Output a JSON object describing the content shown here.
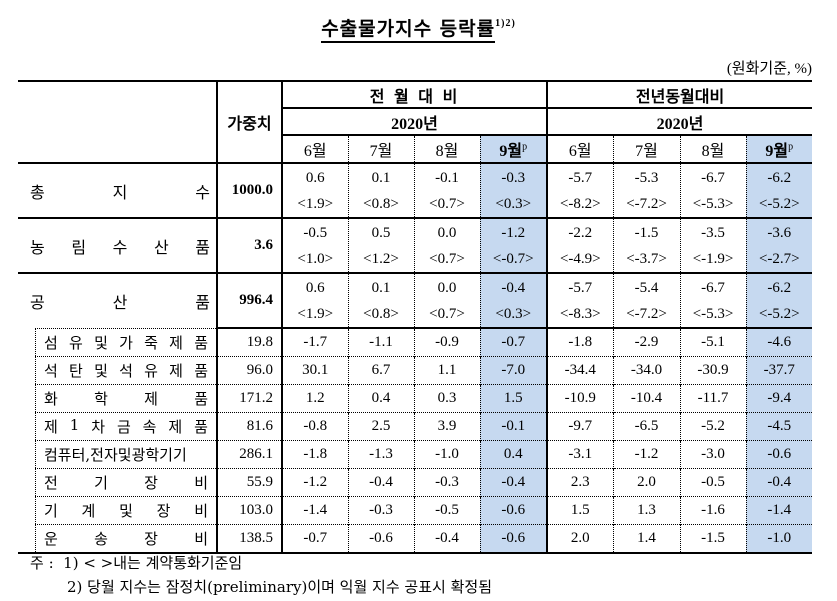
{
  "title": "수출물가지수 등락률",
  "title_sup": "1)2)",
  "unit": "(원화기준, %)",
  "header": {
    "weight": "가중치",
    "group1": "전 월 대 비",
    "group2": "전년동월대비",
    "year1": "2020년",
    "year2": "2020년",
    "months": [
      "6월",
      "7월",
      "8월",
      "9월"
    ],
    "prelim_sup": "p"
  },
  "colors": {
    "highlight": "#c6d9f0"
  },
  "rows": [
    {
      "label_chars": [
        "총",
        "지",
        "수"
      ],
      "weight": "1000.0",
      "mom": [
        "0.6",
        "0.1",
        "-0.1",
        "-0.3"
      ],
      "mom_contract": [
        "<1.9>",
        "<0.8>",
        "<0.7>",
        "<0.3>"
      ],
      "yoy": [
        "-5.7",
        "-5.3",
        "-6.7",
        "-6.2"
      ],
      "yoy_contract": [
        "<-8.2>",
        "<-7.2>",
        "<-5.3>",
        "<-5.2>"
      ]
    },
    {
      "label_chars": [
        "농",
        "림",
        "수",
        "산",
        "품"
      ],
      "weight": "3.6",
      "mom": [
        "-0.5",
        "0.5",
        "0.0",
        "-1.2"
      ],
      "mom_contract": [
        "<1.0>",
        "<1.2>",
        "<0.7>",
        "<-0.7>"
      ],
      "yoy": [
        "-2.2",
        "-1.5",
        "-3.5",
        "-3.6"
      ],
      "yoy_contract": [
        "<-4.9>",
        "<-3.7>",
        "<-1.9>",
        "<-2.7>"
      ]
    },
    {
      "label_chars": [
        "공",
        "산",
        "품"
      ],
      "weight": "996.4",
      "mom": [
        "0.6",
        "0.1",
        "0.0",
        "-0.4"
      ],
      "mom_contract": [
        "<1.9>",
        "<0.8>",
        "<0.7>",
        "<0.3>"
      ],
      "yoy": [
        "-5.7",
        "-5.4",
        "-6.7",
        "-6.2"
      ],
      "yoy_contract": [
        "<-8.3>",
        "<-7.2>",
        "<-5.3>",
        "<-5.2>"
      ]
    }
  ],
  "subrows": [
    {
      "label_chars": [
        "섬",
        "유",
        "및",
        "가",
        "죽",
        "제",
        "품"
      ],
      "weight": "19.8",
      "mom": [
        "-1.7",
        "-1.1",
        "-0.9",
        "-0.7"
      ],
      "yoy": [
        "-1.8",
        "-2.9",
        "-5.1",
        "-4.6"
      ]
    },
    {
      "label_chars": [
        "석",
        "탄",
        "및",
        "석",
        "유",
        "제",
        "품"
      ],
      "weight": "96.0",
      "mom": [
        "30.1",
        "6.7",
        "1.1",
        "-7.0"
      ],
      "yoy": [
        "-34.4",
        "-34.0",
        "-30.9",
        "-37.7"
      ]
    },
    {
      "label_chars": [
        "화",
        "학",
        "제",
        "품"
      ],
      "weight": "171.2",
      "mom": [
        "1.2",
        "0.4",
        "0.3",
        "1.5"
      ],
      "yoy": [
        "-10.9",
        "-10.4",
        "-11.7",
        "-9.4"
      ]
    },
    {
      "label_chars": [
        "제",
        "1",
        "차",
        "금",
        "속",
        "제",
        "품"
      ],
      "weight": "81.6",
      "mom": [
        "-0.8",
        "2.5",
        "3.9",
        "-0.1"
      ],
      "yoy": [
        "-9.7",
        "-6.5",
        "-5.2",
        "-4.5"
      ]
    },
    {
      "label_chars": [
        "컴퓨터,전자및광학기기"
      ],
      "weight": "286.1",
      "mom": [
        "-1.8",
        "-1.3",
        "-1.0",
        "0.4"
      ],
      "yoy": [
        "-3.1",
        "-1.2",
        "-3.0",
        "-0.6"
      ]
    },
    {
      "label_chars": [
        "전",
        "기",
        "장",
        "비"
      ],
      "weight": "55.9",
      "mom": [
        "-1.2",
        "-0.4",
        "-0.3",
        "-0.4"
      ],
      "yoy": [
        "2.3",
        "2.0",
        "-0.5",
        "-0.4"
      ]
    },
    {
      "label_chars": [
        "기",
        "계",
        "및",
        "장",
        "비"
      ],
      "weight": "103.0",
      "mom": [
        "-1.4",
        "-0.3",
        "-0.5",
        "-0.6"
      ],
      "yoy": [
        "1.5",
        "1.3",
        "-1.6",
        "-1.4"
      ]
    },
    {
      "label_chars": [
        "운",
        "송",
        "장",
        "비"
      ],
      "weight": "138.5",
      "mom": [
        "-0.7",
        "-0.6",
        "-0.4",
        "-0.6"
      ],
      "yoy": [
        "2.0",
        "1.4",
        "-1.5",
        "-1.0"
      ]
    }
  ],
  "notes": {
    "prefix": "주 :",
    "note1": "1) < >내는 계약통화기준임",
    "note2": "2) 당월 지수는 잠정치(preliminary)이며 익월 지수 공표시 확정됨"
  }
}
